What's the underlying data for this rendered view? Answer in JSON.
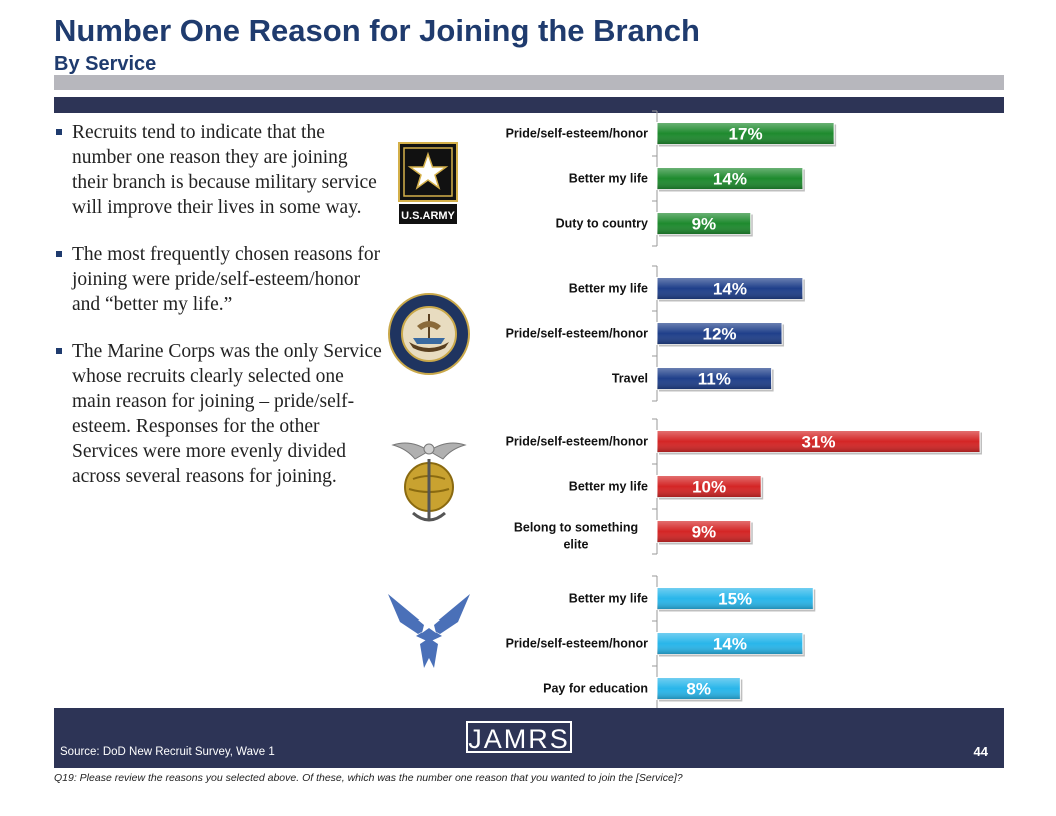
{
  "header": {
    "title": "Number One Reason for Joining the Branch",
    "subtitle": "By Service"
  },
  "bullets": [
    "Recruits tend to indicate that the number one reason they are joining their branch is because military service will improve their lives in some way.",
    "The most frequently chosen reasons for joining were pride/self-esteem/honor  and “better my life.”",
    "The Marine Corps was the only Service whose recruits clearly selected one main reason for joining – pride/self-esteem. Responses for the other Services were more evenly divided across several reasons for joining."
  ],
  "logos": {
    "army_text": "U.S.ARMY",
    "navy": "navy-seal-icon",
    "marines": "eagle-globe-anchor-icon",
    "airforce": "air-force-wings-icon"
  },
  "footer": {
    "brand": "JAMRS",
    "source": "Source:  DoD New Recruit Survey, Wave 1",
    "page": "44",
    "question": "Q19:  Please review the reasons you selected above.  Of these, which was the number one reason that you wanted to join the [Service]?"
  },
  "chart_data": {
    "type": "bar",
    "orientation": "horizontal",
    "unit": "%",
    "xlim": [
      0,
      31
    ],
    "groups": [
      {
        "service": "Army",
        "color": "#1e8a2e",
        "categories": [
          "Pride/self-esteem/honor",
          "Better my life",
          "Duty to country"
        ],
        "values": [
          17,
          14,
          9
        ]
      },
      {
        "service": "Navy",
        "color": "#1f3f8a",
        "categories": [
          "Better my life",
          "Pride/self-esteem/honor",
          "Travel"
        ],
        "values": [
          14,
          12,
          11
        ]
      },
      {
        "service": "Marine Corps",
        "color": "#d42525",
        "categories": [
          "Pride/self-esteem/honor",
          "Better my life",
          "Belong to something elite"
        ],
        "values": [
          31,
          10,
          9
        ]
      },
      {
        "service": "Air Force",
        "color": "#29b6ea",
        "categories": [
          "Better my life",
          "Pride/self-esteem/honor",
          "Pay for education"
        ],
        "values": [
          15,
          14,
          8
        ]
      }
    ]
  }
}
